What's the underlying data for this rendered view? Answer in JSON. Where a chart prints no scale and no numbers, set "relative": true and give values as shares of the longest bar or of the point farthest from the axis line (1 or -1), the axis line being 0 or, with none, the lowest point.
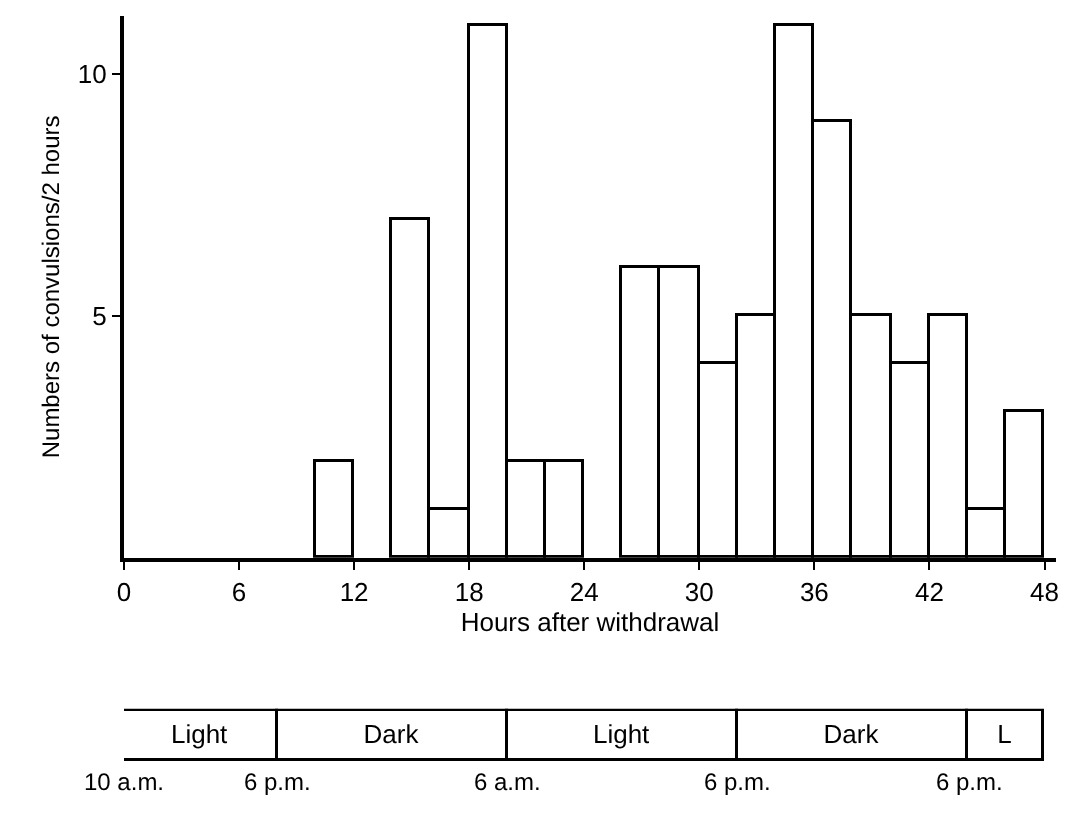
{
  "chart_data": [
    {
      "type": "histogram",
      "xlabel": "Hours after withdrawal",
      "ylabel": "Numbers of convulsions/2 hours",
      "bins": [
        0,
        2,
        4,
        6,
        8,
        10,
        12,
        14,
        16,
        18,
        20,
        22,
        24,
        26,
        28,
        30,
        32,
        34,
        36,
        38,
        40,
        42,
        44,
        46,
        48
      ],
      "values": [
        0,
        0,
        0,
        0,
        0,
        2,
        0,
        7,
        1,
        11,
        2,
        2,
        0,
        6,
        6,
        4,
        5,
        11,
        9,
        5,
        4,
        5,
        1,
        3
      ],
      "color": "#ffffff",
      "xlim": [
        0,
        48.6
      ],
      "xticks": [
        0,
        6,
        12,
        18,
        24,
        30,
        36,
        42,
        48
      ],
      "ylim": [
        0,
        11.2
      ],
      "yticks": [
        5,
        10
      ],
      "legend": false
    },
    {
      "type": "bar",
      "orientation": "horizontal",
      "stacked": true,
      "relative": true,
      "categories": [
        null
      ],
      "series": [
        {
          "name": "Light",
          "color": "#ffffff",
          "values": [
            0.167
          ]
        },
        {
          "name": "Dark",
          "color": "#ffffff",
          "values": [
            0.25
          ]
        },
        {
          "name": "Light",
          "color": "#ffffff",
          "values": [
            0.25
          ]
        },
        {
          "name": "Dark",
          "color": "#ffffff",
          "values": [
            0.25
          ]
        },
        {
          "name": "L",
          "color": "#ffffff",
          "values": [
            0.083
          ]
        }
      ],
      "annotations": [
        "10 a.m.",
        "6 p.m.",
        "6 a.m.",
        "6 p.m.",
        "6 p.m."
      ],
      "legend": false
    }
  ]
}
